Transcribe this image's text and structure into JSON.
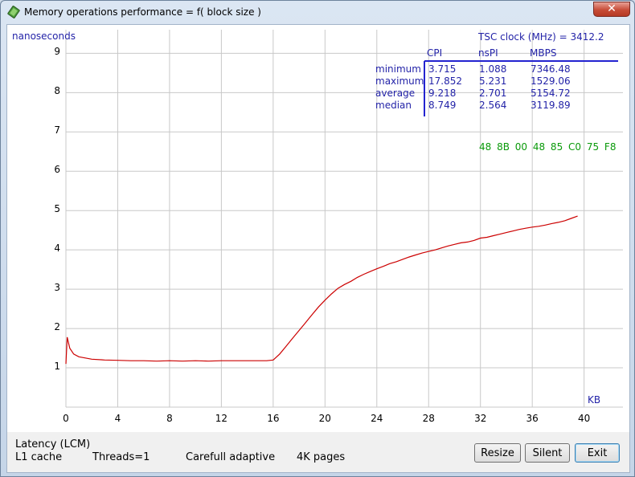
{
  "window": {
    "title": "Memory operations performance = f( block size )"
  },
  "chart_data": {
    "type": "line",
    "ylabel": "nanoseconds",
    "xlabel": "KB",
    "y_ticks": [
      "1",
      "2",
      "3",
      "4",
      "5",
      "6",
      "7",
      "8",
      "9"
    ],
    "x_ticks": [
      "0",
      "4",
      "8",
      "12",
      "16",
      "20",
      "24",
      "28",
      "32",
      "36",
      "40"
    ],
    "xlim": [
      0,
      43
    ],
    "ylim": [
      0,
      9.6
    ],
    "grid": true,
    "series": [
      {
        "color": "#cc0000",
        "x": [
          0,
          0.1,
          0.3,
          0.6,
          1,
          1.5,
          2,
          3,
          4,
          5,
          6,
          7,
          8,
          9,
          10,
          11,
          12,
          13,
          14,
          15,
          15.5,
          16,
          16.5,
          17,
          17.5,
          18,
          18.5,
          19,
          19.5,
          20,
          20.5,
          21,
          21.5,
          22,
          22.5,
          23,
          23.5,
          24,
          24.5,
          25,
          25.5,
          26,
          26.5,
          27,
          27.5,
          28,
          28.5,
          29,
          29.5,
          30,
          30.5,
          31,
          31.5,
          32,
          32.5,
          33,
          33.5,
          34,
          34.5,
          35,
          35.5,
          36,
          36.5,
          37,
          37.5,
          38,
          38.5,
          39,
          39.5
        ],
        "y": [
          1.1,
          1.78,
          1.5,
          1.35,
          1.28,
          1.25,
          1.22,
          1.2,
          1.19,
          1.18,
          1.18,
          1.17,
          1.18,
          1.17,
          1.18,
          1.17,
          1.18,
          1.18,
          1.18,
          1.18,
          1.18,
          1.2,
          1.35,
          1.55,
          1.75,
          1.95,
          2.15,
          2.35,
          2.55,
          2.72,
          2.88,
          3.02,
          3.12,
          3.2,
          3.3,
          3.38,
          3.45,
          3.52,
          3.58,
          3.65,
          3.7,
          3.76,
          3.82,
          3.87,
          3.92,
          3.96,
          4.0,
          4.05,
          4.1,
          4.14,
          4.18,
          4.2,
          4.24,
          4.3,
          4.32,
          4.36,
          4.4,
          4.44,
          4.48,
          4.52,
          4.55,
          4.58,
          4.6,
          4.63,
          4.67,
          4.7,
          4.74,
          4.8,
          4.86
        ]
      }
    ],
    "annotations": {
      "tsc_clock": "TSC clock (MHz)  = 3412.2",
      "opcodes": "48  8B  00   48  85  C0  75  F8"
    },
    "stats_table": {
      "columns": [
        "CPI",
        "nsPI",
        "MBPS"
      ],
      "rows": [
        {
          "label": "minimum",
          "cpi": "3.715",
          "nspi": "1.088",
          "mbps": "7346.48"
        },
        {
          "label": "maximum",
          "cpi": "17.852",
          "nspi": "5.231",
          "mbps": "1529.06"
        },
        {
          "label": "average",
          "cpi": "9.218",
          "nspi": "2.701",
          "mbps": "5154.72"
        },
        {
          "label": "median",
          "cpi": "8.749",
          "nspi": "2.564",
          "mbps": "3119.89"
        }
      ]
    }
  },
  "status": {
    "line1": "Latency (LCM)",
    "cache": "L1 cache",
    "threads": "Threads=1",
    "mode": "Carefull adaptive",
    "pages": "4K pages"
  },
  "buttons": {
    "resize": "Resize",
    "silent": "Silent",
    "exit": "Exit"
  }
}
